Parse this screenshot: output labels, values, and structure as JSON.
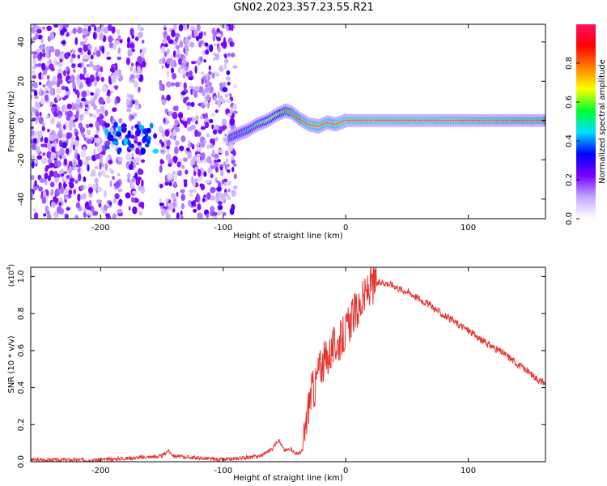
{
  "page_title": "GN02.2023.357.23.55.R21",
  "chart_data": [
    {
      "type": "heatmap",
      "title": "GN02.2023.357.23.55.R21",
      "xlabel": "Height of straight line (km)",
      "ylabel": "Frequency (Hz)",
      "xlim": [
        -257,
        163
      ],
      "ylim": [
        -50,
        49
      ],
      "x_ticks": [
        "-200",
        "-100",
        "0",
        "100"
      ],
      "y_ticks": [
        "40",
        "20",
        "0",
        "-20",
        "-40"
      ],
      "colorbar": {
        "label": "Normalized spectral amplitude",
        "range": [
          0,
          1
        ],
        "ticks": [
          "0.0",
          "0.2",
          "0.4",
          "0.6",
          "0.8"
        ],
        "colors": [
          "#ffffff",
          "#c4a8ff",
          "#7a00ff",
          "#0000ff",
          "#00e0ff",
          "#00ff30",
          "#ffff00",
          "#ff8000",
          "#ff0000",
          "#ff1060"
        ]
      },
      "signal_track": [
        {
          "x": -95,
          "y": -9,
          "amp": 0.45
        },
        {
          "x": -88,
          "y": -7,
          "amp": 0.5
        },
        {
          "x": -80,
          "y": -5,
          "amp": 0.55
        },
        {
          "x": -72,
          "y": -2,
          "amp": 0.6
        },
        {
          "x": -64,
          "y": 0,
          "amp": 0.65
        },
        {
          "x": -56,
          "y": 3,
          "amp": 0.7
        },
        {
          "x": -49,
          "y": 5,
          "amp": 0.8
        },
        {
          "x": -44,
          "y": 4,
          "amp": 0.85
        },
        {
          "x": -38,
          "y": 1,
          "amp": 0.9
        },
        {
          "x": -30,
          "y": -2,
          "amp": 0.95
        },
        {
          "x": -22,
          "y": -3,
          "amp": 0.95
        },
        {
          "x": -15,
          "y": -1,
          "amp": 0.95
        },
        {
          "x": -8,
          "y": -2,
          "amp": 0.95
        },
        {
          "x": 0,
          "y": 0,
          "amp": 1.0
        },
        {
          "x": 50,
          "y": 0,
          "amp": 1.0
        },
        {
          "x": 100,
          "y": 0,
          "amp": 0.95
        },
        {
          "x": 163,
          "y": 0,
          "amp": 0.9
        }
      ],
      "noise_region": [
        -257,
        -90
      ]
    },
    {
      "type": "line",
      "xlabel": "Height of straight line (km)",
      "ylabel": "SNR (10 * v/v)",
      "y_multiplier": "(x10",
      "y_multiplier_exp": "4",
      "y_multiplier_close": ")",
      "xlim": [
        -257,
        163
      ],
      "ylim": [
        0,
        1.05
      ],
      "x_ticks": [
        "-200",
        "-100",
        "0",
        "100"
      ],
      "y_ticks": [
        "0.0",
        "0.2",
        "0.4",
        "0.6",
        "0.8",
        "1.0"
      ],
      "line_color": "#e8322e",
      "series": [
        {
          "x": [
            -257,
            -200,
            -150,
            -145,
            -140,
            -100,
            -70,
            -60,
            -55,
            -50,
            -45,
            -40,
            -35,
            -30,
            -28,
            -25,
            -22,
            -20,
            -15,
            -10,
            -5,
            0,
            5,
            10,
            15,
            20,
            25,
            30,
            35,
            40,
            45,
            50,
            60,
            70,
            80,
            90,
            100,
            110,
            120,
            130,
            140,
            150,
            160,
            163
          ],
          "y": [
            0.01,
            0.01,
            0.03,
            0.06,
            0.03,
            0.01,
            0.03,
            0.07,
            0.12,
            0.06,
            0.07,
            0.04,
            0.06,
            0.32,
            0.38,
            0.4,
            0.5,
            0.52,
            0.56,
            0.62,
            0.65,
            0.7,
            0.78,
            0.82,
            0.88,
            0.95,
            0.96,
            0.97,
            0.96,
            0.95,
            0.93,
            0.92,
            0.88,
            0.84,
            0.79,
            0.75,
            0.71,
            0.66,
            0.62,
            0.58,
            0.53,
            0.48,
            0.43,
            0.42
          ]
        }
      ]
    }
  ]
}
